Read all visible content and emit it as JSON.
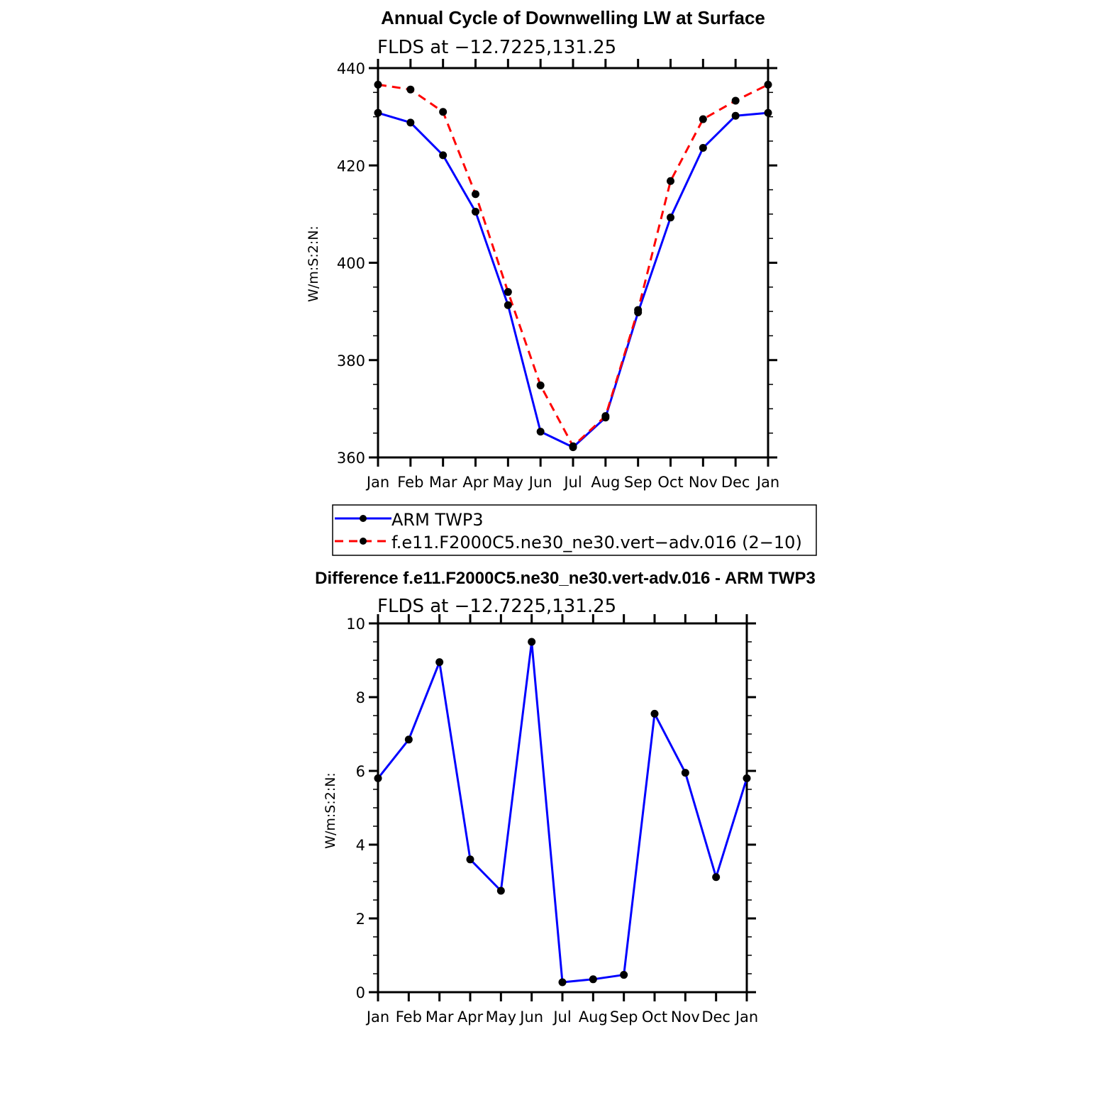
{
  "chart_data": [
    {
      "type": "line",
      "title": "Annual Cycle of Downwelling LW at Surface",
      "subtitle": "FLDS at −12.7225,131.25",
      "xlabel": "",
      "ylabel": "W/m:S:2:N:",
      "categories": [
        "Jan",
        "Feb",
        "Mar",
        "Apr",
        "May",
        "Jun",
        "Jul",
        "Aug",
        "Sep",
        "Oct",
        "Nov",
        "Dec",
        "Jan"
      ],
      "ylim": [
        360,
        440
      ],
      "yticks": [
        "360",
        "380",
        "400",
        "420",
        "440"
      ],
      "series": [
        {
          "name": "ARM TWP3",
          "color": "#0000ff",
          "dash": "solid",
          "values": [
            430.8,
            428.8,
            422.1,
            410.5,
            391.3,
            365.3,
            362.1,
            368.2,
            389.8,
            409.3,
            423.6,
            430.2,
            430.8
          ]
        },
        {
          "name": "f.e11.F2000C5.ne30_ne30.vert−adv.016 (2−10)",
          "color": "#ff0000",
          "dash": "dashed",
          "values": [
            436.6,
            435.6,
            431.0,
            414.1,
            394.0,
            374.8,
            362.3,
            368.5,
            390.3,
            416.8,
            429.5,
            433.3,
            436.6
          ]
        }
      ],
      "legend": [
        "ARM TWP3",
        "f.e11.F2000C5.ne30_ne30.vert−adv.016 (2−10)"
      ],
      "legend_position": "below",
      "grid": false
    },
    {
      "type": "line",
      "title": "Difference f.e11.F2000C5.ne30_ne30.vert-adv.016 - ARM TWP3",
      "subtitle": "FLDS at −12.7225,131.25",
      "xlabel": "",
      "ylabel": "W/m:S:2:N:",
      "categories": [
        "Jan",
        "Feb",
        "Mar",
        "Apr",
        "May",
        "Jun",
        "Jul",
        "Aug",
        "Sep",
        "Oct",
        "Nov",
        "Dec",
        "Jan"
      ],
      "ylim": [
        0,
        10
      ],
      "yticks": [
        "0",
        "2",
        "4",
        "6",
        "8",
        "10"
      ],
      "series": [
        {
          "color": "#0000ff",
          "dash": "solid",
          "values": [
            5.8,
            6.85,
            8.95,
            3.6,
            2.75,
            9.5,
            0.27,
            0.35,
            0.47,
            7.55,
            5.95,
            3.12,
            5.8
          ]
        }
      ],
      "grid": false
    }
  ]
}
